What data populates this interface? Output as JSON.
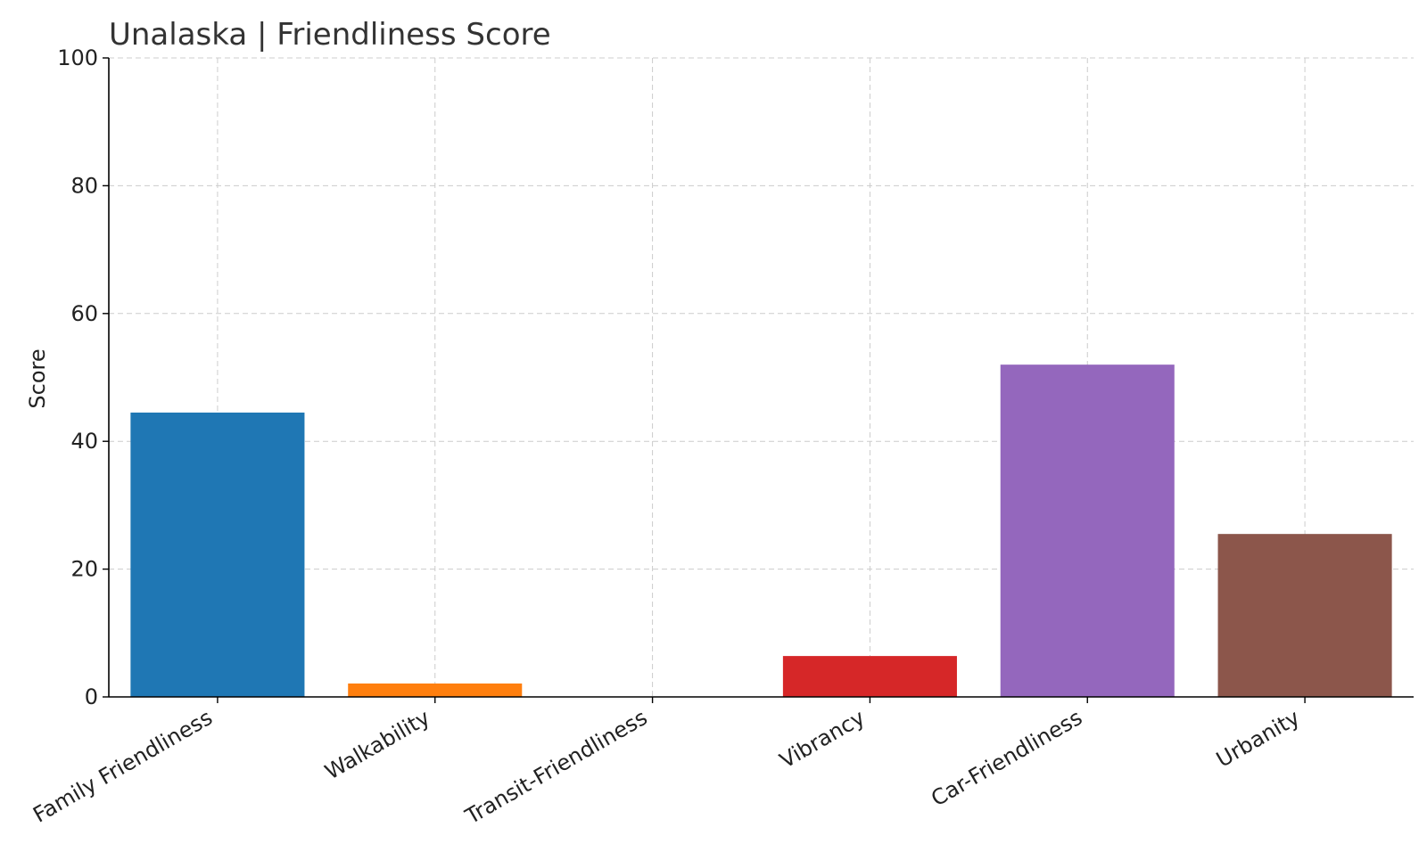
{
  "chart_data": {
    "type": "bar",
    "title": "Unalaska | Friendliness Score",
    "xlabel": "",
    "ylabel": "Score",
    "categories": [
      "Family Friendliness",
      "Walkability",
      "Transit-Friendliness",
      "Vibrancy",
      "Car-Friendliness",
      "Urbanity"
    ],
    "values": [
      44.5,
      2.1,
      0,
      6.4,
      52,
      25.5
    ],
    "colors": [
      "#1f77b4",
      "#ff7f0e",
      "#2ca02c",
      "#d62728",
      "#9467bd",
      "#8c564b"
    ],
    "ylim": [
      0,
      100
    ],
    "yticks": [
      "0",
      "20",
      "40",
      "60",
      "80",
      "100"
    ],
    "grid": true,
    "legend": "none"
  }
}
